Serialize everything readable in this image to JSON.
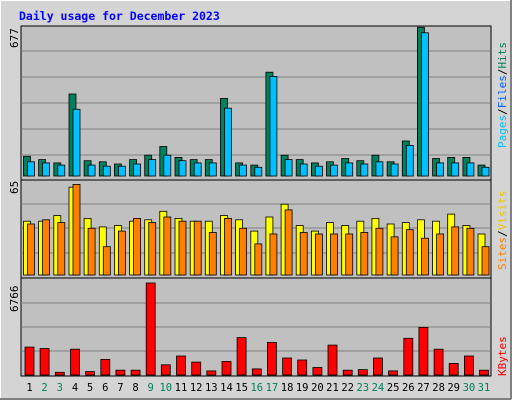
{
  "title": "Daily usage for December 2023",
  "colors": {
    "hits": "#00805C",
    "files": "#00C0FF",
    "visits": "#FFFF00",
    "sites": "#FF8000",
    "kbytes": "#FF0000",
    "weekend_label": "#00805C",
    "weekday_label": "#000000",
    "plot_bg": "#C0C0C0",
    "frame_bg": "#D4D4D4",
    "title_color": "#0000FF"
  },
  "chart_data": [
    {
      "type": "bar",
      "panel": "top",
      "axis_max_label": "677",
      "ylim": [
        0,
        677
      ],
      "legend": {
        "hits": "Hits",
        "files": "Files",
        "pages": "Pages",
        "sep": "/"
      },
      "categories": [
        "1",
        "2",
        "3",
        "4",
        "5",
        "6",
        "7",
        "8",
        "9",
        "10",
        "11",
        "12",
        "13",
        "14",
        "15",
        "16",
        "17",
        "18",
        "19",
        "20",
        "21",
        "22",
        "23",
        "24",
        "25",
        "26",
        "27",
        "28",
        "29",
        "30",
        "31"
      ],
      "series": [
        {
          "name": "Hits",
          "values": [
            90,
            75,
            60,
            375,
            70,
            65,
            55,
            75,
            95,
            135,
            85,
            75,
            75,
            355,
            60,
            50,
            475,
            95,
            75,
            60,
            65,
            80,
            70,
            95,
            65,
            160,
            680,
            80,
            85,
            85,
            50
          ]
        },
        {
          "name": "Files",
          "values": [
            65,
            60,
            50,
            305,
            50,
            45,
            45,
            55,
            75,
            95,
            70,
            60,
            60,
            310,
            50,
            40,
            455,
            75,
            55,
            45,
            50,
            60,
            55,
            65,
            55,
            140,
            655,
            60,
            60,
            60,
            40
          ]
        },
        {
          "name": "Pages",
          "values": [
            14,
            12,
            10,
            18,
            12,
            11,
            10,
            12,
            14,
            16,
            14,
            12,
            12,
            16,
            11,
            10,
            18,
            14,
            12,
            10,
            11,
            12,
            11,
            13,
            11,
            15,
            20,
            12,
            12,
            12,
            10
          ]
        }
      ]
    },
    {
      "type": "bar",
      "panel": "middle",
      "axis_max_label": "65",
      "ylim": [
        0,
        65
      ],
      "legend": {
        "visits": "Visits",
        "sites": "Sites",
        "sep": "/"
      },
      "categories": [
        "1",
        "2",
        "3",
        "4",
        "5",
        "6",
        "7",
        "8",
        "9",
        "10",
        "11",
        "12",
        "13",
        "14",
        "15",
        "16",
        "17",
        "18",
        "19",
        "20",
        "21",
        "22",
        "23",
        "24",
        "25",
        "26",
        "27",
        "28",
        "29",
        "30",
        "31"
      ],
      "series": [
        {
          "name": "Visits",
          "values": [
            38,
            38,
            42,
            62,
            40,
            34,
            35,
            38,
            39,
            45,
            40,
            38,
            38,
            42,
            39,
            31,
            41,
            50,
            35,
            31,
            37,
            35,
            38,
            40,
            36,
            37,
            39,
            38,
            43,
            35,
            29
          ]
        },
        {
          "name": "Sites",
          "values": [
            36,
            39,
            37,
            64,
            33,
            20,
            31,
            40,
            37,
            41,
            38,
            38,
            30,
            40,
            33,
            22,
            29,
            46,
            30,
            29,
            29,
            29,
            30,
            33,
            27,
            32,
            26,
            29,
            34,
            33,
            20
          ]
        }
      ]
    },
    {
      "type": "bar",
      "panel": "bottom",
      "axis_max_label": "6766",
      "ylim": [
        0,
        6766
      ],
      "legend": {
        "kbytes": "KBytes"
      },
      "categories": [
        "1",
        "2",
        "3",
        "4",
        "5",
        "6",
        "7",
        "8",
        "9",
        "10",
        "11",
        "12",
        "13",
        "14",
        "15",
        "16",
        "17",
        "18",
        "19",
        "20",
        "21",
        "22",
        "23",
        "24",
        "25",
        "26",
        "27",
        "28",
        "29",
        "30",
        "31"
      ],
      "weekend": [
        "2",
        "3",
        "9",
        "10",
        "16",
        "17",
        "23",
        "24",
        "30",
        "31"
      ],
      "series": [
        {
          "name": "KBytes",
          "values": [
            2050,
            1950,
            200,
            1900,
            250,
            1150,
            350,
            350,
            6766,
            750,
            1400,
            950,
            300,
            1000,
            2750,
            450,
            2400,
            1250,
            1100,
            550,
            2200,
            350,
            400,
            1250,
            300,
            2700,
            3500,
            1900,
            850,
            1400,
            350
          ]
        }
      ]
    }
  ]
}
